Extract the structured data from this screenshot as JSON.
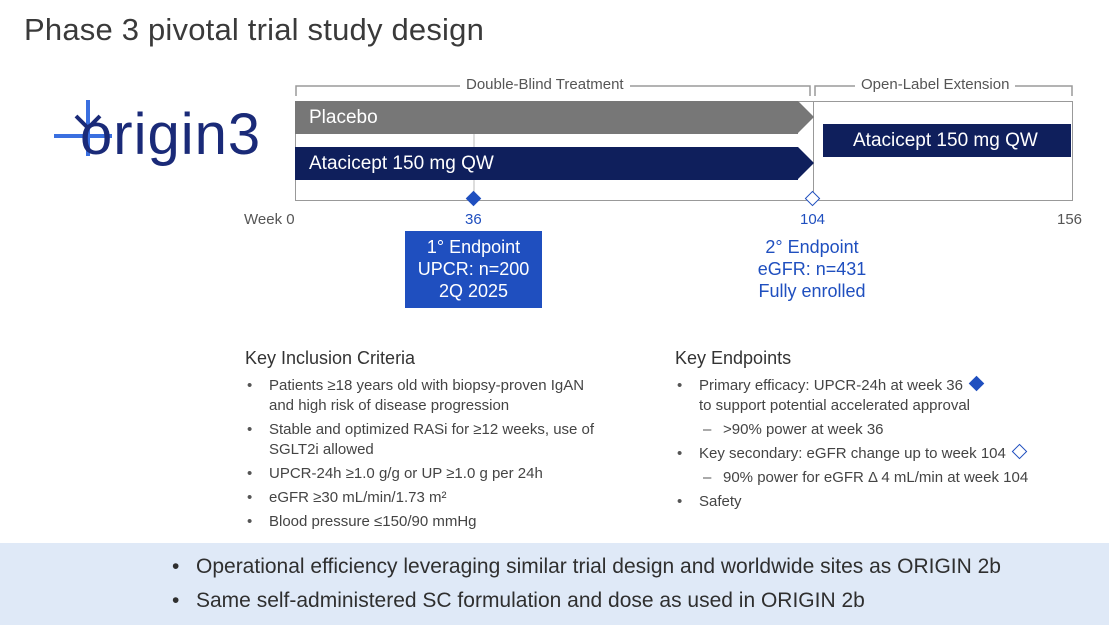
{
  "title": "Phase 3 pivotal trial study design",
  "logo": {
    "text": "origin3",
    "mark_icon": "origin-cross-mark-icon",
    "color": "#1a2a78"
  },
  "timeline": {
    "phases": [
      {
        "label": "Double-Blind Treatment"
      },
      {
        "label": "Open-Label Extension"
      }
    ],
    "arms": [
      {
        "label": "Placebo",
        "color": "#777777"
      },
      {
        "label": "Atacicept 150 mg QW",
        "color": "#0f1f5c"
      }
    ],
    "extension_arm": {
      "label": "Atacicept 150 mg QW",
      "color": "#0f1f5c"
    },
    "weeks": [
      {
        "label": "Week 0"
      },
      {
        "label": "36"
      },
      {
        "label": "104"
      },
      {
        "label": "156"
      }
    ],
    "endpoint1": {
      "marker": "filled-diamond-icon",
      "lines": [
        "1° Endpoint",
        "UPCR: n=200",
        "2Q 2025"
      ],
      "color": "#1f4fbf"
    },
    "endpoint2": {
      "marker": "outline-diamond-icon",
      "lines": [
        "2° Endpoint",
        "eGFR: n=431",
        "Fully enrolled"
      ],
      "color": "#1f4fbf"
    }
  },
  "inclusion": {
    "heading": "Key Inclusion Criteria",
    "items": [
      "Patients ≥18 years old with biopsy-proven IgAN and high risk of disease progression",
      "Stable and optimized RASi for ≥12 weeks, use of SGLT2i allowed",
      "UPCR-24h ≥1.0 g/g or UP ≥1.0 g per 24h",
      "eGFR ≥30 mL/min/1.73 m²",
      "Blood pressure ≤150/90 mmHg"
    ]
  },
  "endpoints": {
    "heading": "Key Endpoints",
    "primary": "Primary efficacy: UPCR-24h at week 36",
    "primary_cont": "to support potential accelerated approval",
    "primary_sub": ">90% power at week 36",
    "secondary": "Key secondary: eGFR change up to week 104",
    "secondary_sub": "90% power for eGFR Δ 4 mL/min at week 104",
    "safety": "Safety"
  },
  "banner": {
    "items": [
      "Operational efficiency leveraging similar trial design and worldwide sites as ORIGIN 2b",
      "Same self-administered SC formulation and dose as used in ORIGIN 2b"
    ],
    "background": "#dfe9f7"
  }
}
